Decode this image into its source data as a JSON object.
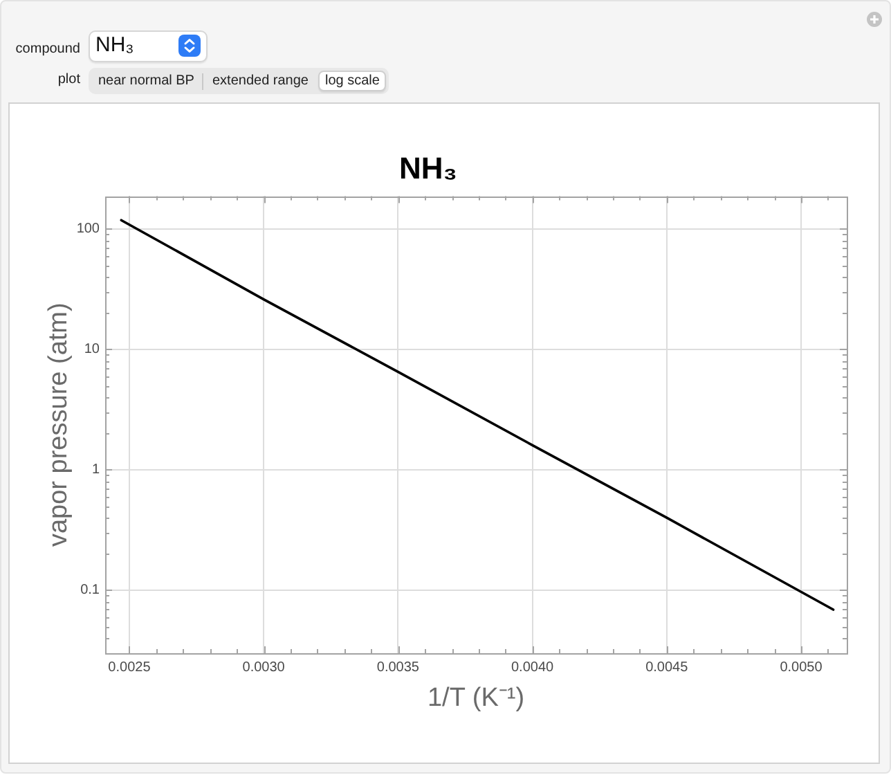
{
  "chart_data": {
    "type": "line",
    "title": "NH₃",
    "xlabel": "1/T (K⁻¹)",
    "ylabel": "vapor pressure (atm)",
    "annotations": [
      "compound",
      "NH₃",
      "plot",
      "near normal BP",
      "extended range",
      "log scale"
    ],
    "x": [
      0.00247,
      0.003,
      0.0035,
      0.004,
      0.0045,
      0.00512
    ],
    "series": [
      {
        "color": "#000000",
        "values": [
          118,
          26,
          6.5,
          1.6,
          0.4,
          0.069
        ]
      }
    ],
    "xlim": [
      0.00241,
      0.00517
    ],
    "ylim": [
      0.03,
      187
    ],
    "xticks": [
      {
        "value": 0.0025,
        "label": "0.0025"
      },
      {
        "value": 0.0026,
        "label": null
      },
      {
        "value": 0.0027,
        "label": null
      },
      {
        "value": 0.0028,
        "label": null
      },
      {
        "value": 0.0029,
        "label": null
      },
      {
        "value": 0.003,
        "label": "0.0030"
      },
      {
        "value": 0.0031,
        "label": null
      },
      {
        "value": 0.0032,
        "label": null
      },
      {
        "value": 0.0033,
        "label": null
      },
      {
        "value": 0.0034,
        "label": null
      },
      {
        "value": 0.0035,
        "label": "0.0035"
      },
      {
        "value": 0.0036,
        "label": null
      },
      {
        "value": 0.0037,
        "label": null
      },
      {
        "value": 0.0038,
        "label": null
      },
      {
        "value": 0.0039,
        "label": null
      },
      {
        "value": 0.004,
        "label": "0.0040"
      },
      {
        "value": 0.0041,
        "label": null
      },
      {
        "value": 0.0042,
        "label": null
      },
      {
        "value": 0.0043,
        "label": null
      },
      {
        "value": 0.0044,
        "label": null
      },
      {
        "value": 0.0045,
        "label": "0.0045"
      },
      {
        "value": 0.0046,
        "label": null
      },
      {
        "value": 0.0047,
        "label": null
      },
      {
        "value": 0.0048,
        "label": null
      },
      {
        "value": 0.0049,
        "label": null
      },
      {
        "value": 0.005,
        "label": "0.0050"
      },
      {
        "value": 0.0051,
        "label": null
      }
    ],
    "yticks": [
      {
        "value": 0.04,
        "label": null
      },
      {
        "value": 0.05,
        "label": null
      },
      {
        "value": 0.06,
        "label": null
      },
      {
        "value": 0.07,
        "label": null
      },
      {
        "value": 0.08,
        "label": null
      },
      {
        "value": 0.09,
        "label": null
      },
      0.1,
      {
        "value": 0.2,
        "label": null
      },
      {
        "value": 0.3,
        "label": null
      },
      {
        "value": 0.4,
        "label": null
      },
      {
        "value": 0.5,
        "label": null
      },
      {
        "value": 0.6,
        "label": null
      },
      {
        "value": 0.7,
        "label": null
      },
      {
        "value": 0.8,
        "label": null
      },
      {
        "value": 0.9,
        "label": null
      },
      1,
      {
        "value": 2,
        "label": null
      },
      {
        "value": 3,
        "label": null
      },
      {
        "value": 4,
        "label": null
      },
      {
        "value": 5,
        "label": null
      },
      {
        "value": 6,
        "label": null
      },
      {
        "value": 7,
        "label": null
      },
      {
        "value": 8,
        "label": null
      },
      {
        "value": 9,
        "label": null
      },
      10,
      {
        "value": 20,
        "label": null
      },
      {
        "value": 30,
        "label": null
      },
      {
        "value": 40,
        "label": null
      },
      {
        "value": 50,
        "label": null
      },
      {
        "value": 60,
        "label": null
      },
      {
        "value": 70,
        "label": null
      },
      {
        "value": 80,
        "label": null
      },
      {
        "value": 90,
        "label": null
      },
      100
    ],
    "log": "y",
    "grid": true,
    "marker": "none",
    "line_style": "solid"
  }
}
